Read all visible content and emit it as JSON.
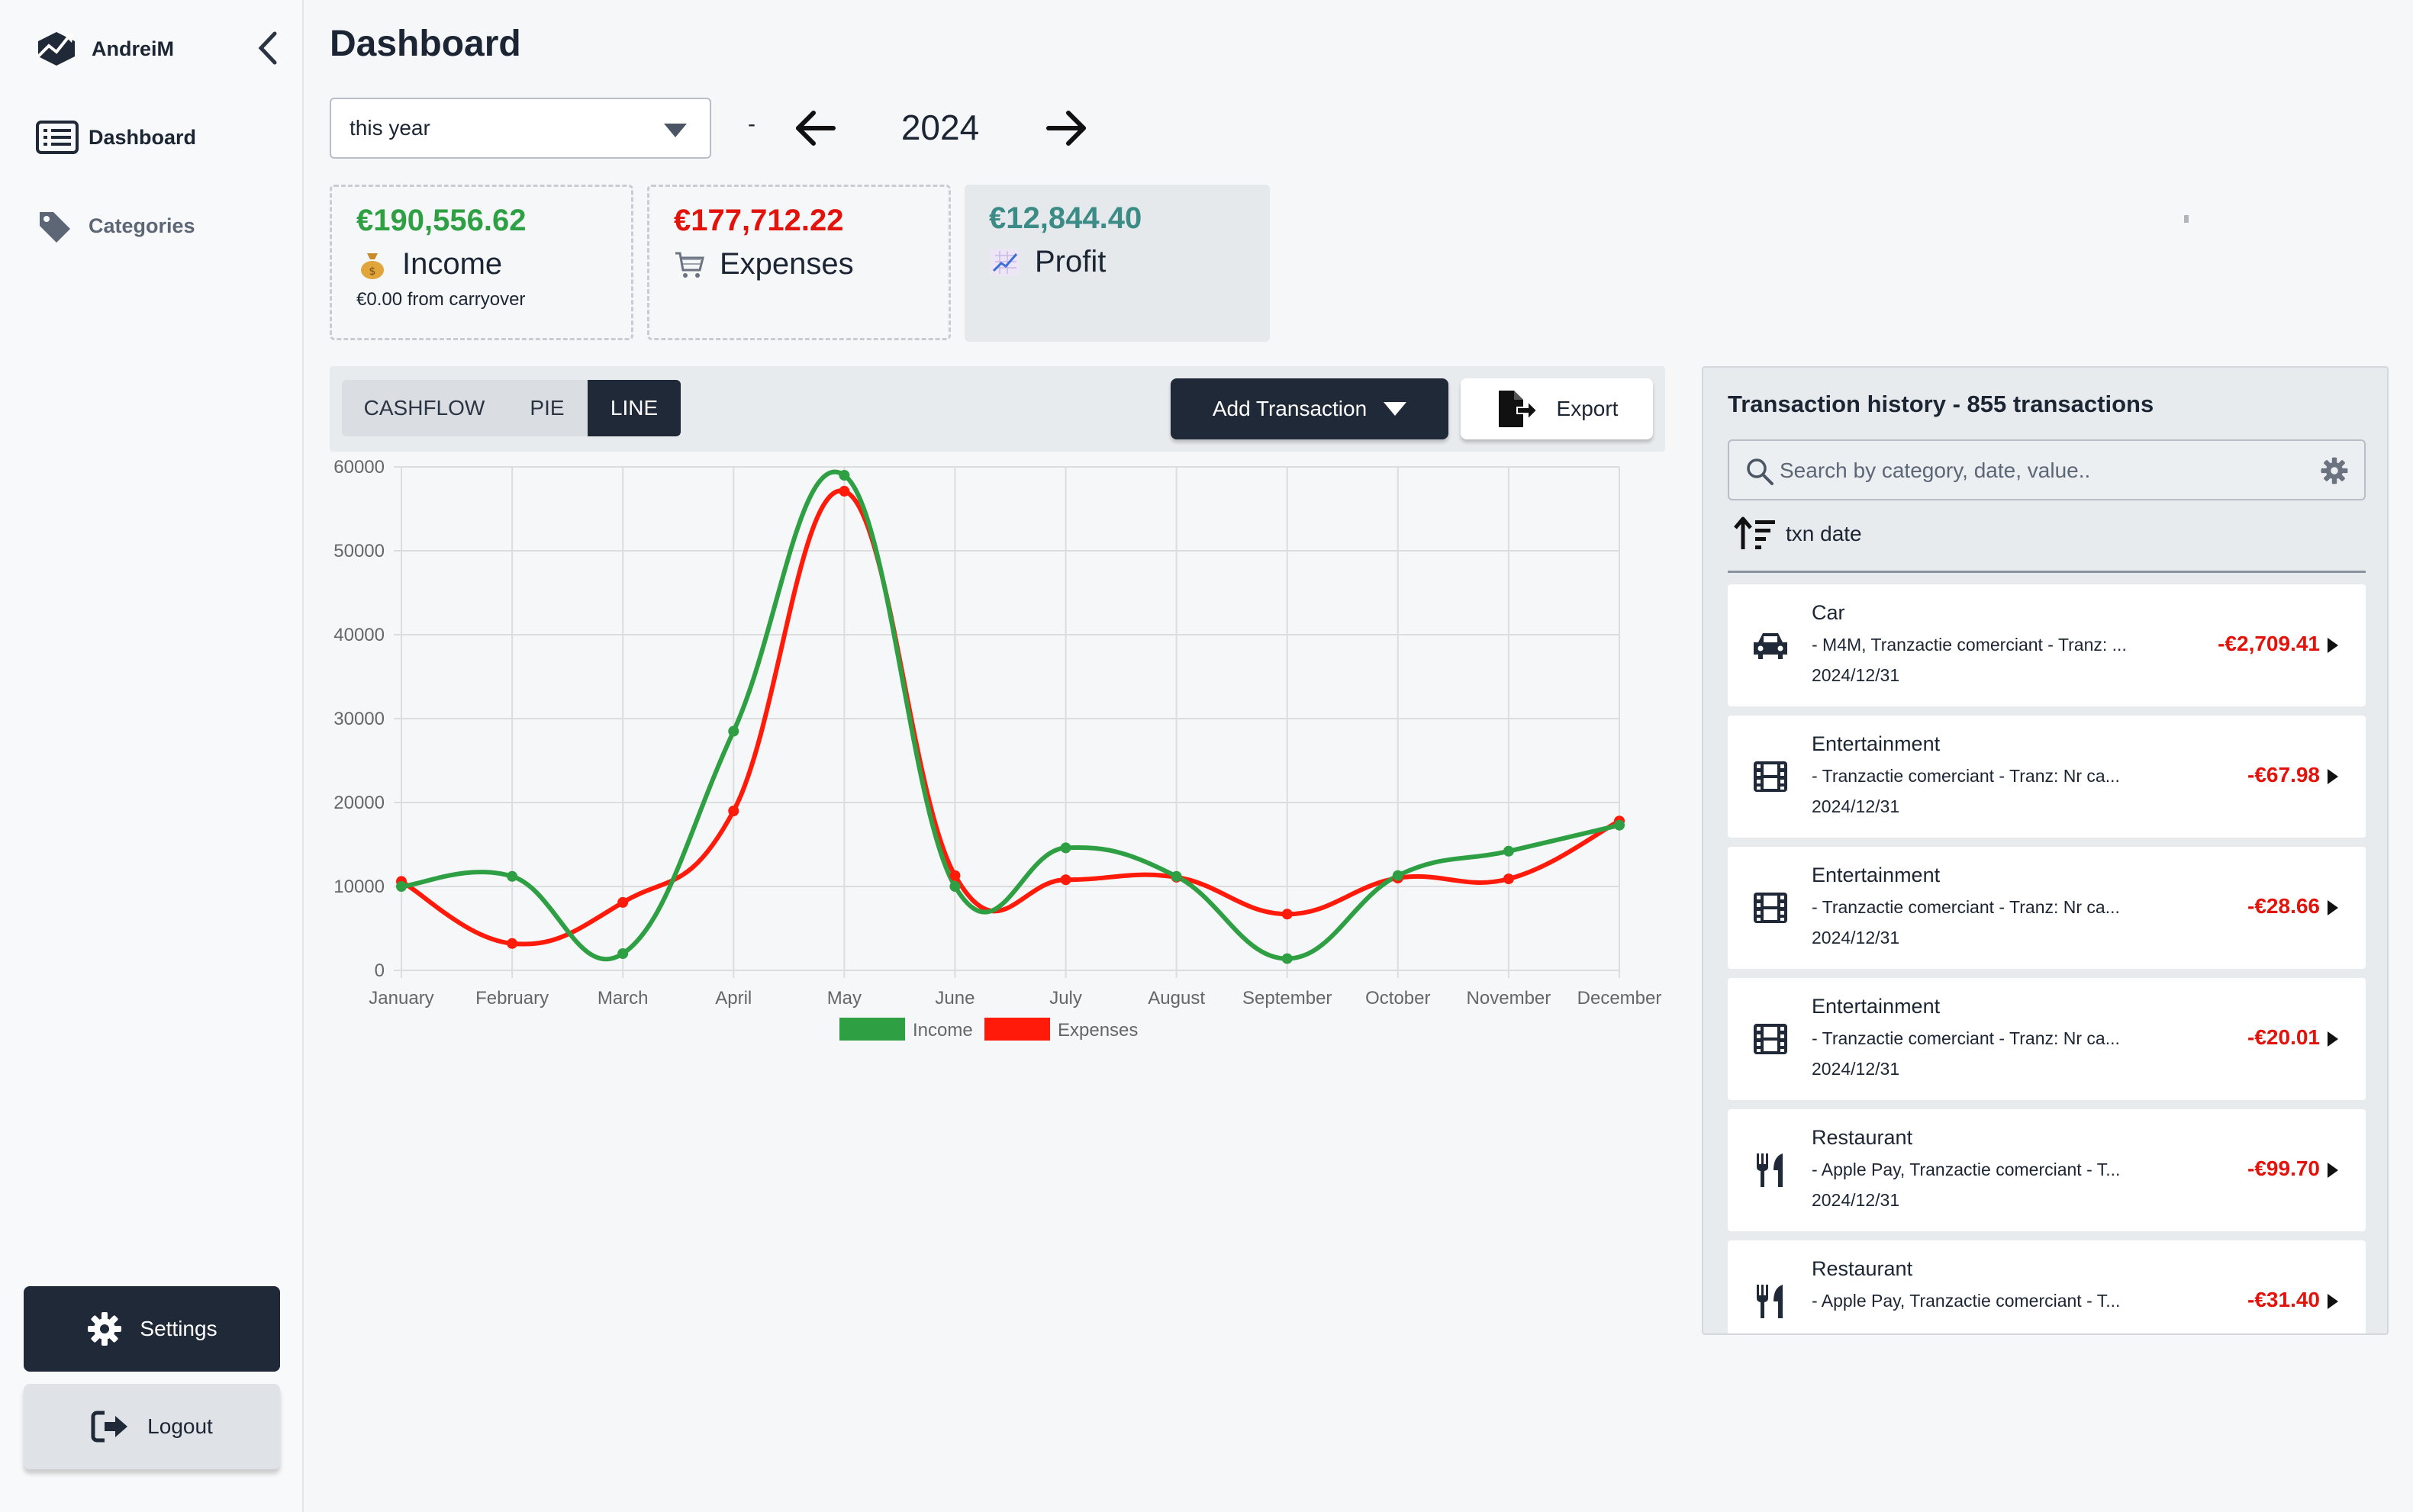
{
  "sidebar": {
    "username": "AndreiM",
    "nav": [
      {
        "label": "Dashboard",
        "icon": "list-icon",
        "active": true
      },
      {
        "label": "Categories",
        "icon": "tag-icon",
        "active": false
      }
    ],
    "settings_label": "Settings",
    "logout_label": "Logout"
  },
  "header": {
    "title": "Dashboard",
    "period_value": "this year",
    "separator": "-",
    "year": "2024"
  },
  "stats": {
    "income": {
      "value": "€190,556.62",
      "label": "Income",
      "sub": "€0.00 from carryover",
      "color": "#2ea043"
    },
    "expenses": {
      "value": "€177,712.22",
      "label": "Expenses",
      "color": "#e3120b"
    },
    "profit": {
      "value": "€12,844.40",
      "label": "Profit",
      "color": "#3b8b87"
    }
  },
  "toolbar": {
    "tabs": [
      "CASHFLOW",
      "PIE",
      "LINE"
    ],
    "active_tab": "LINE",
    "add_transaction_label": "Add Transaction",
    "export_label": "Export"
  },
  "chart_data": {
    "type": "line",
    "categories": [
      "January",
      "February",
      "March",
      "April",
      "May",
      "June",
      "July",
      "August",
      "September",
      "October",
      "November",
      "December"
    ],
    "series": [
      {
        "name": "Income",
        "color": "#2ea043",
        "values": [
          10000,
          11200,
          2000,
          28500,
          59000,
          10000,
          14600,
          11200,
          1400,
          11300,
          14200,
          17300
        ]
      },
      {
        "name": "Expenses",
        "color": "#ff1a0a",
        "values": [
          10600,
          3200,
          8100,
          19000,
          57100,
          11300,
          10800,
          11100,
          6700,
          11000,
          10900,
          17800
        ]
      }
    ],
    "ylim": [
      0,
      60000
    ],
    "yticks": [
      "0",
      "10000",
      "20000",
      "30000",
      "40000",
      "50000",
      "60000"
    ],
    "grid": true,
    "legend": "bottom"
  },
  "transactions": {
    "title": "Transaction history - 855 transactions",
    "search_placeholder": "Search by category, date, value..",
    "sort_label": "txn date",
    "items": [
      {
        "category": "Car",
        "icon": "car-icon",
        "description": "- M4M, Tranzactie comerciant - Tranz: ...",
        "date": "2024/12/31",
        "amount": "-€2,709.41"
      },
      {
        "category": "Entertainment",
        "icon": "film-icon",
        "description": "- Tranzactie comerciant - Tranz: Nr ca...",
        "date": "2024/12/31",
        "amount": "-€67.98"
      },
      {
        "category": "Entertainment",
        "icon": "film-icon",
        "description": "- Tranzactie comerciant - Tranz: Nr ca...",
        "date": "2024/12/31",
        "amount": "-€28.66"
      },
      {
        "category": "Entertainment",
        "icon": "film-icon",
        "description": "- Tranzactie comerciant - Tranz: Nr ca...",
        "date": "2024/12/31",
        "amount": "-€20.01"
      },
      {
        "category": "Restaurant",
        "icon": "utensils-icon",
        "description": "- Apple Pay, Tranzactie comerciant - T...",
        "date": "2024/12/31",
        "amount": "-€99.70"
      },
      {
        "category": "Restaurant",
        "icon": "utensils-icon",
        "description": "- Apple Pay, Tranzactie comerciant - T...",
        "date": "",
        "amount": "-€31.40"
      }
    ]
  }
}
